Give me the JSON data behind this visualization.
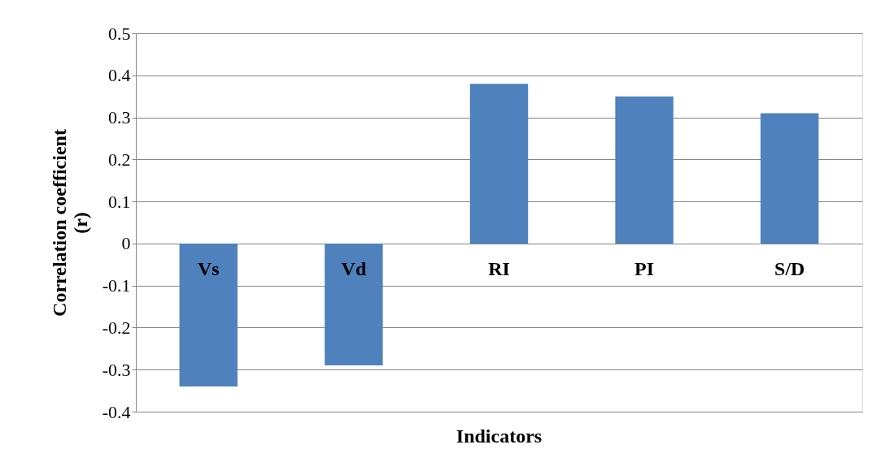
{
  "chart_data": {
    "type": "bar",
    "xlabel": "Indicators",
    "ylabel": "Correlation coefficient (r)",
    "categories": [
      "Vs",
      "Vd",
      "RI",
      "PI",
      "S/D"
    ],
    "values": [
      -0.34,
      -0.29,
      0.38,
      0.35,
      0.31
    ],
    "color": "#4f81bd",
    "ylim": [
      -0.4,
      0.5
    ],
    "yticks": [
      -0.4,
      -0.3,
      -0.2,
      -0.1,
      0,
      0.1,
      0.2,
      0.3,
      0.4,
      0.5
    ],
    "grid": "y"
  }
}
